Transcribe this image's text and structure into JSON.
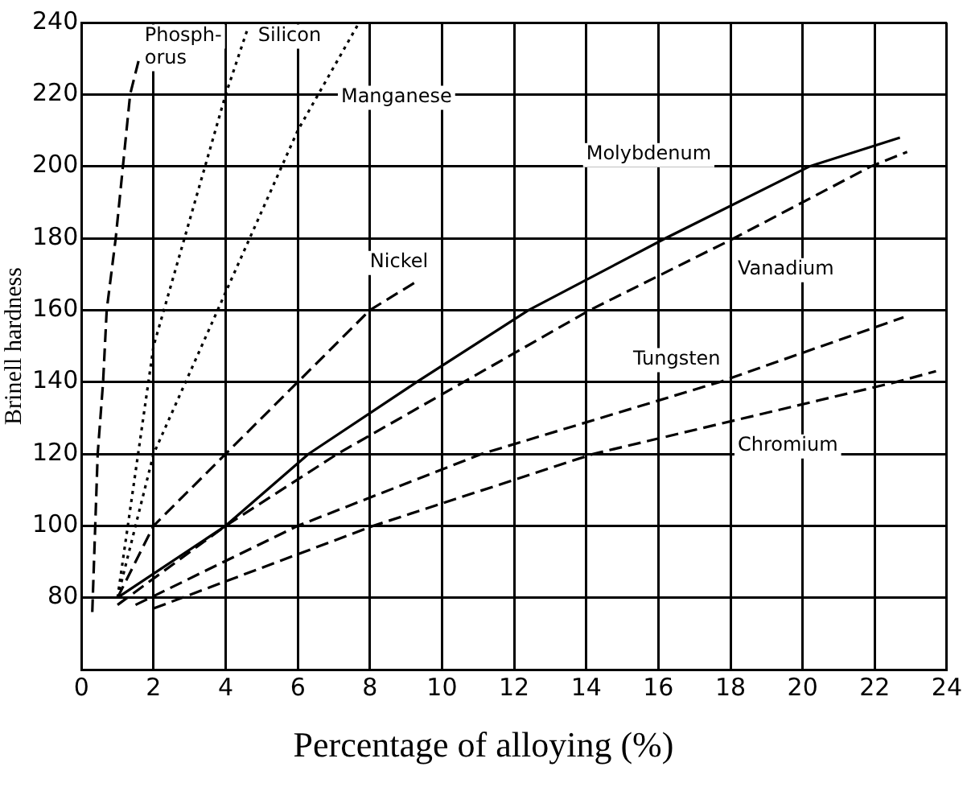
{
  "chart_data": {
    "type": "line",
    "xlabel": "Percentage of alloying (%)",
    "ylabel": "Brinell hardness",
    "xlim": [
      0,
      24
    ],
    "xticks": [
      0,
      2,
      4,
      6,
      8,
      10,
      12,
      14,
      16,
      18,
      20,
      22,
      24
    ],
    "ylim": [
      60,
      240
    ],
    "yticks": [
      {
        "value": 60,
        "label": null
      },
      80,
      100,
      120,
      140,
      160,
      180,
      200,
      220,
      240
    ],
    "grid": true,
    "legend": false,
    "marker": "none",
    "series": [
      {
        "name": "Phosph-\norus",
        "color": "#000000",
        "line_style": "dashed",
        "x": [
          0.3,
          0.45,
          0.6,
          0.7,
          0.95,
          1.15,
          1.35,
          1.6
        ],
        "values": [
          76,
          120,
          140,
          160,
          180,
          200,
          220,
          230
        ]
      },
      {
        "name": "Silicon",
        "color": "#000000",
        "line_style": "dotted",
        "x": [
          1,
          2,
          4,
          4.6
        ],
        "values": [
          80,
          150,
          220,
          238
        ]
      },
      {
        "name": "Manganese",
        "color": "#000000",
        "line_style": "dotted",
        "x": [
          1,
          2,
          4,
          6,
          7.7
        ],
        "values": [
          80,
          120,
          165,
          210,
          240
        ]
      },
      {
        "name": "Nickel",
        "color": "#000000",
        "line_style": "dashed",
        "x": [
          1,
          2,
          4,
          6,
          8,
          9.3
        ],
        "values": [
          80,
          100,
          120,
          140,
          160,
          168
        ]
      },
      {
        "name": "Molybdenum",
        "color": "#000000",
        "line_style": "solid",
        "x": [
          1,
          4,
          6.3,
          9.3,
          12.4,
          16.2,
          20.2,
          22.7
        ],
        "values": [
          80,
          100,
          120,
          140,
          160,
          180,
          200,
          208
        ]
      },
      {
        "name": "Vanadium",
        "color": "#000000",
        "line_style": "dashed",
        "x": [
          1,
          4,
          7.1,
          10.6,
          14.1,
          18.1,
          21.9,
          22.9
        ],
        "values": [
          78,
          100,
          120,
          140,
          160,
          180,
          200,
          204
        ]
      },
      {
        "name": "Tungsten",
        "color": "#000000",
        "line_style": "dashed",
        "x": [
          1.5,
          6,
          11.1,
          17.7,
          22.8
        ],
        "values": [
          78,
          100,
          120,
          140,
          158
        ]
      },
      {
        "name": "Chromium",
        "color": "#000000",
        "line_style": "dashed",
        "x": [
          2,
          8.1,
          14.2,
          22.6,
          23.7
        ],
        "values": [
          77,
          100,
          120,
          140,
          143
        ]
      }
    ]
  }
}
